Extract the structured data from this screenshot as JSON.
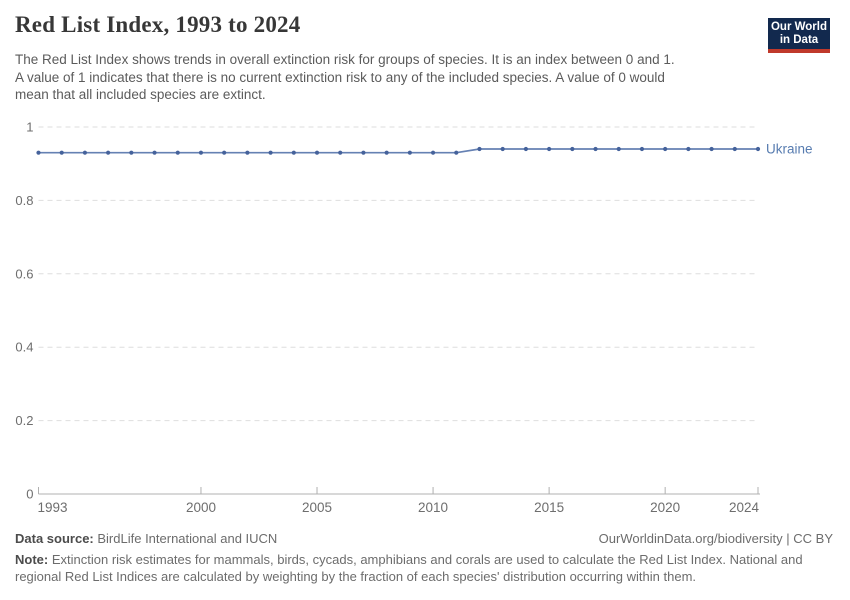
{
  "header": {
    "title": "Red List Index, 1993 to 2024",
    "subtitle_lines": [
      "The Red List Index shows trends in overall extinction risk for groups of species. It is an index between 0 and 1.",
      "A value of 1 indicates that there is no current extinction risk to any of the included species. A value of 0 would",
      "mean that all included species are extinct."
    ],
    "logo": {
      "line1": "Our World",
      "line2": "in Data",
      "bg_color": "#12294e",
      "bar_color": "#c0392b"
    }
  },
  "chart_data": {
    "type": "line",
    "title": "Red List Index, 1993 to 2024",
    "xlabel": "",
    "ylabel": "",
    "x": [
      1993,
      1994,
      1995,
      1996,
      1997,
      1998,
      1999,
      2000,
      2001,
      2002,
      2003,
      2004,
      2005,
      2006,
      2007,
      2008,
      2009,
      2010,
      2011,
      2012,
      2013,
      2014,
      2015,
      2016,
      2017,
      2018,
      2019,
      2020,
      2021,
      2022,
      2023,
      2024
    ],
    "series": [
      {
        "name": "Ukraine",
        "values": [
          0.93,
          0.93,
          0.93,
          0.93,
          0.93,
          0.93,
          0.93,
          0.93,
          0.93,
          0.93,
          0.93,
          0.93,
          0.93,
          0.93,
          0.93,
          0.93,
          0.93,
          0.93,
          0.93,
          0.94,
          0.94,
          0.94,
          0.94,
          0.94,
          0.94,
          0.94,
          0.94,
          0.94,
          0.94,
          0.94,
          0.94,
          0.94
        ]
      }
    ],
    "ylim": [
      0,
      1
    ],
    "yticks": [
      0,
      0.2,
      0.4,
      0.6,
      0.8,
      1
    ],
    "xticks": [
      1993,
      2000,
      2005,
      2010,
      2015,
      2020,
      2024
    ],
    "grid": true,
    "legend_position": "line-end-label",
    "line_color": "#6581b3",
    "marker_color": "#45629b",
    "label_color": "#577cb0",
    "grid_color": "#dedede",
    "axis_color": "#b0b0b0",
    "tick_label_color": "#6e6e6e"
  },
  "footer": {
    "datasource_label": "Data source:",
    "datasource_value": "BirdLife International and IUCN",
    "attribution": "OurWorldinData.org/biodiversity | CC BY",
    "note_label": "Note:",
    "note_lines": [
      "Extinction risk estimates for mammals, birds, cycads, amphibians and corals are used to calculate the Red List Index. National and",
      "regional Red List Indices are calculated by weighting by the fraction of each species' distribution occurring within them."
    ]
  }
}
